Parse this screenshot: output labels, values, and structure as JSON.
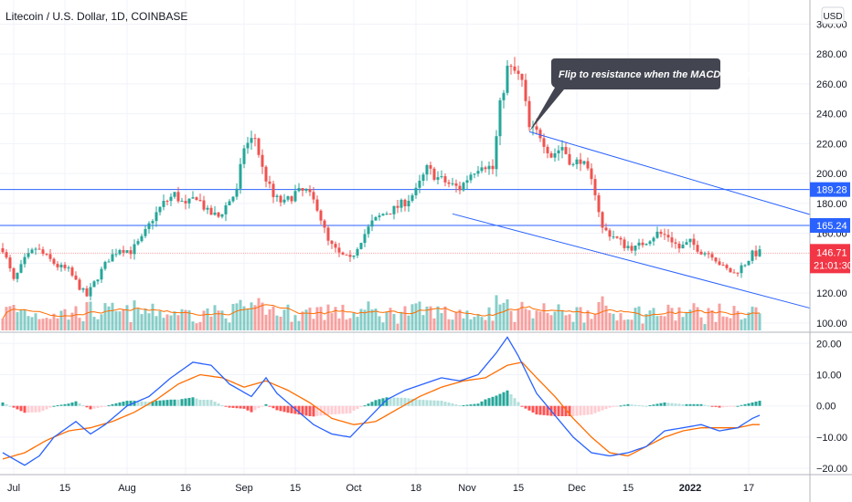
{
  "chart_data": {
    "type": "candlestick",
    "title": "Litecoin / U.S. Dollar, 1D, COINBASE",
    "currency_button": "USD",
    "x_ticks": [
      {
        "label": "Jul",
        "day": 3
      },
      {
        "label": "15",
        "day": 17
      },
      {
        "label": "Aug",
        "day": 34
      },
      {
        "label": "16",
        "day": 50
      },
      {
        "label": "Sep",
        "day": 66
      },
      {
        "label": "15",
        "day": 80
      },
      {
        "label": "Oct",
        "day": 96
      },
      {
        "label": "18",
        "day": 113
      },
      {
        "label": "Nov",
        "day": 127
      },
      {
        "label": "15",
        "day": 141
      },
      {
        "label": "Dec",
        "day": 157
      },
      {
        "label": "15",
        "day": 171
      },
      {
        "label": "2022",
        "day": 188,
        "bold": true
      },
      {
        "label": "17",
        "day": 204
      }
    ],
    "y_ticks": [
      100,
      120,
      140,
      160,
      180,
      200,
      220,
      240,
      260,
      280,
      300
    ],
    "y_range": [
      95,
      310
    ],
    "macd_ticks": [
      20,
      10,
      0,
      -10,
      -20
    ],
    "macd_tick_labels": [
      "20.00",
      "10.00",
      "0.00",
      "−10.00",
      "−20.00"
    ],
    "macd_range": [
      -22,
      23
    ],
    "horizontal_levels": [
      {
        "value": 189.28,
        "label": "189.28",
        "color": "#2962ff"
      },
      {
        "value": 165.24,
        "label": "165.24",
        "color": "#2962ff"
      }
    ],
    "price_badge": {
      "value": 146.71,
      "label": "146.71",
      "countdown": "21:01:30",
      "color": "#f23645"
    },
    "trendlines": [
      {
        "from": [
          144,
          228
        ],
        "to": [
          216,
          176
        ],
        "color": "#2962ff"
      },
      {
        "from": [
          123,
          173
        ],
        "to": [
          216,
          113
        ],
        "color": "#2962ff"
      }
    ],
    "annotation": {
      "text": "Flip to resistance when the MACD flipped.",
      "day": 144,
      "price": 228
    },
    "price_anchors": [
      [
        0,
        150
      ],
      [
        3,
        128
      ],
      [
        6,
        142
      ],
      [
        9,
        150
      ],
      [
        12,
        144
      ],
      [
        15,
        138
      ],
      [
        18,
        135
      ],
      [
        21,
        124
      ],
      [
        23,
        118
      ],
      [
        26,
        131
      ],
      [
        29,
        143
      ],
      [
        32,
        150
      ],
      [
        35,
        148
      ],
      [
        38,
        156
      ],
      [
        41,
        170
      ],
      [
        44,
        180
      ],
      [
        47,
        186
      ],
      [
        50,
        178
      ],
      [
        53,
        185
      ],
      [
        56,
        174
      ],
      [
        59,
        171
      ],
      [
        62,
        182
      ],
      [
        64,
        188
      ],
      [
        66,
        218
      ],
      [
        69,
        224
      ],
      [
        71,
        203
      ],
      [
        74,
        184
      ],
      [
        77,
        180
      ],
      [
        80,
        187
      ],
      [
        83,
        188
      ],
      [
        86,
        178
      ],
      [
        89,
        154
      ],
      [
        92,
        146
      ],
      [
        95,
        142
      ],
      [
        98,
        156
      ],
      [
        101,
        167
      ],
      [
        104,
        173
      ],
      [
        107,
        176
      ],
      [
        110,
        181
      ],
      [
        113,
        188
      ],
      [
        116,
        203
      ],
      [
        119,
        197
      ],
      [
        122,
        193
      ],
      [
        125,
        190
      ],
      [
        128,
        200
      ],
      [
        131,
        207
      ],
      [
        134,
        203
      ],
      [
        136,
        245
      ],
      [
        138,
        270
      ],
      [
        140,
        268
      ],
      [
        142,
        261
      ],
      [
        144,
        230
      ],
      [
        147,
        226
      ],
      [
        150,
        212
      ],
      [
        153,
        218
      ],
      [
        156,
        205
      ],
      [
        158,
        210
      ],
      [
        160,
        200
      ],
      [
        162,
        188
      ],
      [
        164,
        163
      ],
      [
        167,
        158
      ],
      [
        170,
        152
      ],
      [
        173,
        150
      ],
      [
        176,
        155
      ],
      [
        179,
        160
      ],
      [
        182,
        158
      ],
      [
        185,
        150
      ],
      [
        188,
        154
      ],
      [
        191,
        148
      ],
      [
        194,
        146
      ],
      [
        197,
        137
      ],
      [
        200,
        133
      ],
      [
        203,
        140
      ],
      [
        205,
        146
      ],
      [
        207,
        147
      ]
    ],
    "macd_anchors": [
      [
        0,
        -15
      ],
      [
        6,
        -19
      ],
      [
        10,
        -16
      ],
      [
        14,
        -10
      ],
      [
        20,
        -5
      ],
      [
        24,
        -9
      ],
      [
        28,
        -6
      ],
      [
        34,
        0
      ],
      [
        40,
        3
      ],
      [
        46,
        9
      ],
      [
        52,
        14
      ],
      [
        57,
        13
      ],
      [
        62,
        7
      ],
      [
        68,
        3
      ],
      [
        72,
        9
      ],
      [
        75,
        4
      ],
      [
        80,
        -1
      ],
      [
        85,
        -6
      ],
      [
        90,
        -9
      ],
      [
        95,
        -10
      ],
      [
        100,
        -4
      ],
      [
        105,
        2
      ],
      [
        110,
        5
      ],
      [
        115,
        7
      ],
      [
        120,
        9
      ],
      [
        125,
        8
      ],
      [
        130,
        10
      ],
      [
        135,
        17
      ],
      [
        138,
        22
      ],
      [
        141,
        16
      ],
      [
        146,
        4
      ],
      [
        151,
        -3
      ],
      [
        156,
        -10
      ],
      [
        161,
        -15
      ],
      [
        166,
        -16
      ],
      [
        171,
        -15
      ],
      [
        176,
        -13
      ],
      [
        181,
        -8
      ],
      [
        186,
        -7
      ],
      [
        191,
        -6
      ],
      [
        196,
        -8
      ],
      [
        201,
        -7
      ],
      [
        205,
        -4
      ],
      [
        207,
        -3
      ]
    ],
    "signal_anchors": [
      [
        0,
        -17
      ],
      [
        6,
        -15
      ],
      [
        12,
        -11
      ],
      [
        18,
        -8
      ],
      [
        24,
        -7
      ],
      [
        30,
        -5
      ],
      [
        36,
        -2
      ],
      [
        42,
        2
      ],
      [
        48,
        7
      ],
      [
        54,
        10
      ],
      [
        60,
        9
      ],
      [
        66,
        6
      ],
      [
        72,
        8
      ],
      [
        78,
        5
      ],
      [
        84,
        1
      ],
      [
        90,
        -4
      ],
      [
        96,
        -6
      ],
      [
        102,
        -5
      ],
      [
        108,
        -1
      ],
      [
        114,
        3
      ],
      [
        120,
        6
      ],
      [
        126,
        8
      ],
      [
        132,
        9
      ],
      [
        138,
        13
      ],
      [
        142,
        14
      ],
      [
        146,
        9
      ],
      [
        151,
        3
      ],
      [
        156,
        -4
      ],
      [
        161,
        -10
      ],
      [
        166,
        -15
      ],
      [
        171,
        -16
      ],
      [
        176,
        -13
      ],
      [
        181,
        -10
      ],
      [
        186,
        -8
      ],
      [
        191,
        -7
      ],
      [
        196,
        -7
      ],
      [
        201,
        -7
      ],
      [
        205,
        -6
      ],
      [
        207,
        -6
      ]
    ]
  }
}
